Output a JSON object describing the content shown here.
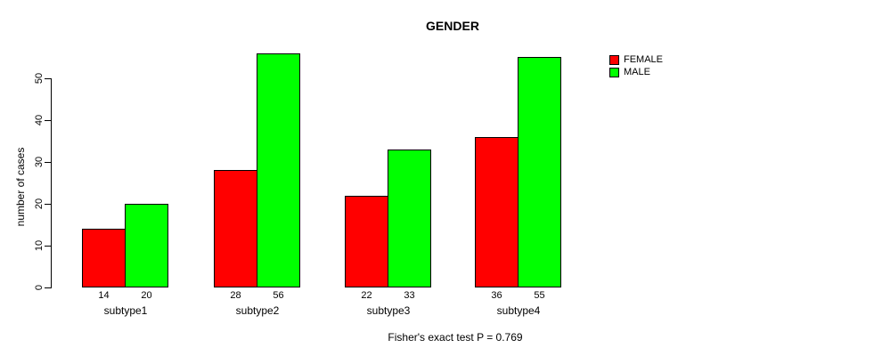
{
  "chart_data": {
    "type": "bar",
    "title": "GENDER",
    "ylabel": "number of cases",
    "xlabel": "",
    "categories": [
      "subtype1",
      "subtype2",
      "subtype3",
      "subtype4"
    ],
    "series": [
      {
        "name": "FEMALE",
        "color": "#ff0000",
        "values": [
          14,
          28,
          22,
          36
        ]
      },
      {
        "name": "MALE",
        "color": "#00ff00",
        "values": [
          20,
          56,
          33,
          55
        ]
      }
    ],
    "ylim": [
      0,
      50
    ],
    "yticks": [
      0,
      10,
      20,
      30,
      40,
      50
    ],
    "bar_value_labels": [
      [
        14,
        28,
        22,
        36
      ],
      [
        20,
        56,
        33,
        55
      ]
    ],
    "legend_position": "top-right",
    "grid": false,
    "caption": "Fisher's exact test P = 0.769"
  },
  "colors": {
    "background": "#ffffff",
    "axis": "#000000",
    "female": "#ff0000",
    "male": "#00ff00"
  }
}
